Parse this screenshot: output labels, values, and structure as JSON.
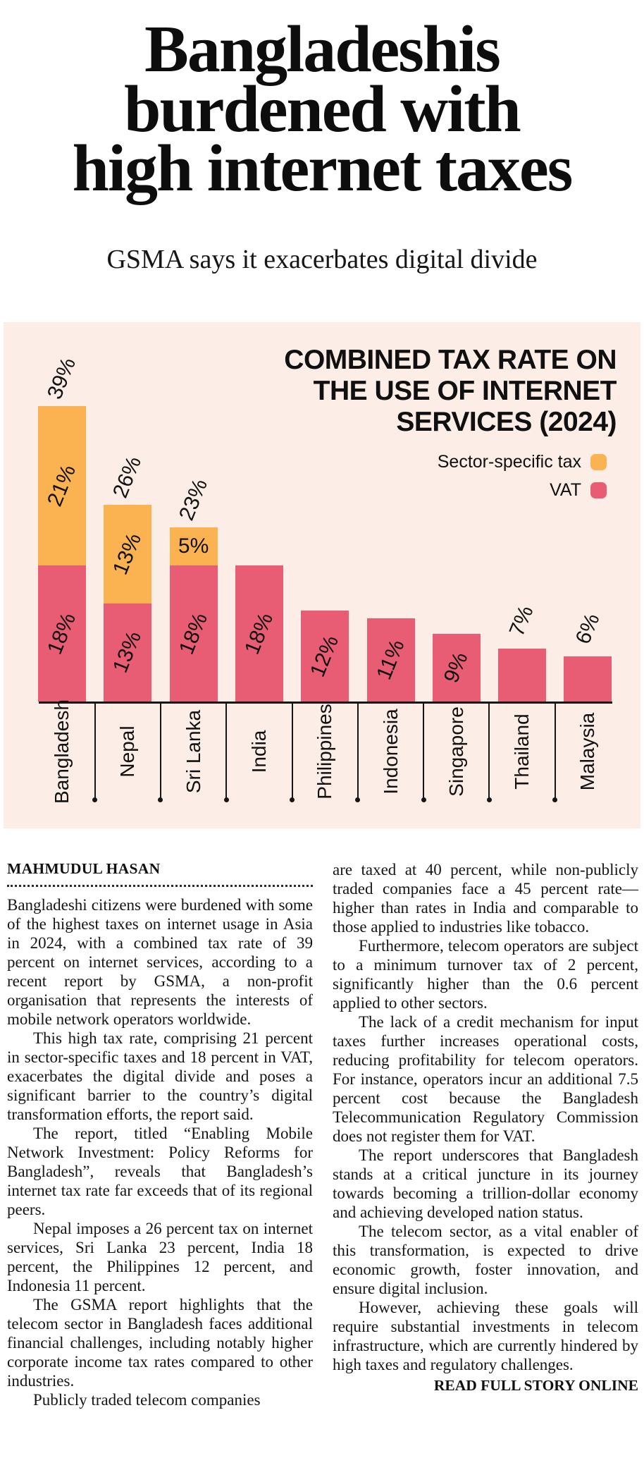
{
  "header": {
    "headline_lines": [
      "Bangladeshis",
      "burdened with",
      "high internet taxes"
    ],
    "subtitle": "GSMA says it exacerbates digital divide"
  },
  "chart": {
    "title_lines": [
      "COMBINED TAX RATE ON",
      "THE USE OF INTERNET",
      "SERVICES (2024)"
    ],
    "legend": [
      {
        "label": "Sector-specific tax",
        "color": "#FBB351"
      },
      {
        "label": "VAT",
        "color": "#E85D73"
      }
    ],
    "colors": {
      "background": "#FCEDE7",
      "sector_tax": "#FBB351",
      "vat": "#E85D73",
      "axis": "#151515"
    }
  },
  "chart_data": {
    "type": "bar",
    "stacked": true,
    "title": "COMBINED TAX RATE ON THE USE OF INTERNET SERVICES (2024)",
    "unit": "%",
    "legend_position": "top-right",
    "grid": false,
    "categories": [
      "Bangladesh",
      "Nepal",
      "Sri Lanka",
      "India",
      "Philippines",
      "Indonesia",
      "Singapore",
      "Thailand",
      "Malaysia"
    ],
    "series": [
      {
        "name": "Sector-specific tax",
        "color": "#FBB351",
        "values": [
          21,
          13,
          5,
          0,
          0,
          0,
          0,
          0,
          0
        ]
      },
      {
        "name": "VAT",
        "color": "#E85D73",
        "values": [
          18,
          13,
          18,
          18,
          12,
          11,
          9,
          7,
          6
        ]
      }
    ],
    "totals": [
      39,
      26,
      23,
      18,
      12,
      11,
      9,
      7,
      6
    ],
    "annotations": {
      "inside_labels": [
        [
          "21%",
          "18%"
        ],
        [
          "13%",
          "13%"
        ],
        [
          "5%",
          "18%"
        ],
        [
          null,
          "18%"
        ],
        [
          null,
          "12%"
        ],
        [
          null,
          "11%"
        ],
        [
          null,
          "9%"
        ],
        [
          null,
          null
        ],
        [
          null,
          null
        ]
      ],
      "flat_inside_labels": [
        "5%"
      ],
      "above_labels": [
        "39%",
        "26%",
        "23%",
        null,
        null,
        null,
        null,
        "7%",
        "6%"
      ]
    }
  },
  "article": {
    "byline": "MAHMUDUL HASAN",
    "left_column": [
      "Bangladeshi citizens were burdened with some of the highest taxes on internet usage in Asia in 2024, with a combined tax rate of 39 percent on internet services, according to a recent report by GSMA, a non-profit organisation that represents the interests of mobile network operators worldwide.",
      "This high tax rate, comprising 21 percent in sector-specific taxes and 18 percent in VAT, exacerbates the digital divide and poses a significant barrier to the country’s digital transformation efforts, the report said.",
      "The report, titled “Enabling Mobile Network Investment: Policy Reforms for Bangladesh”, reveals that Bangladesh’s internet tax rate far exceeds that of its regional peers.",
      "Nepal imposes a 26 percent tax on internet services, Sri Lanka 23 percent, India 18 percent, the Philippines 12 percent, and Indonesia 11 percent.",
      "The GSMA report highlights that the telecom sector in Bangladesh faces additional financial challenges, including notably higher corporate income tax rates compared to other industries.",
      "Publicly traded telecom companies"
    ],
    "right_column": [
      "are taxed at 40 percent, while non-publicly traded companies face a 45 percent rate—higher than rates in India and comparable to those applied to industries like tobacco.",
      "Furthermore, telecom operators are subject to a minimum turnover tax of 2 percent, significantly higher than the 0.6 percent applied to other sectors.",
      "The lack of a credit mechanism for input taxes further increases operational costs, reducing profitability for telecom operators. For instance, operators incur an additional 7.5 percent cost because the Bangladesh Telecommunication Regulatory Commission does not register them for VAT.",
      "The report underscores that Bangladesh stands at a critical juncture in its journey towards becoming a trillion-dollar economy and achieving developed nation status.",
      "The telecom sector, as a vital enabler of this transformation, is expected to drive economic growth, foster innovation, and ensure digital inclusion.",
      "However, achieving these goals will require substantial investments in telecom infrastructure, which are currently hindered by high taxes and regulatory challenges."
    ],
    "read_more": "READ FULL STORY ONLINE"
  }
}
